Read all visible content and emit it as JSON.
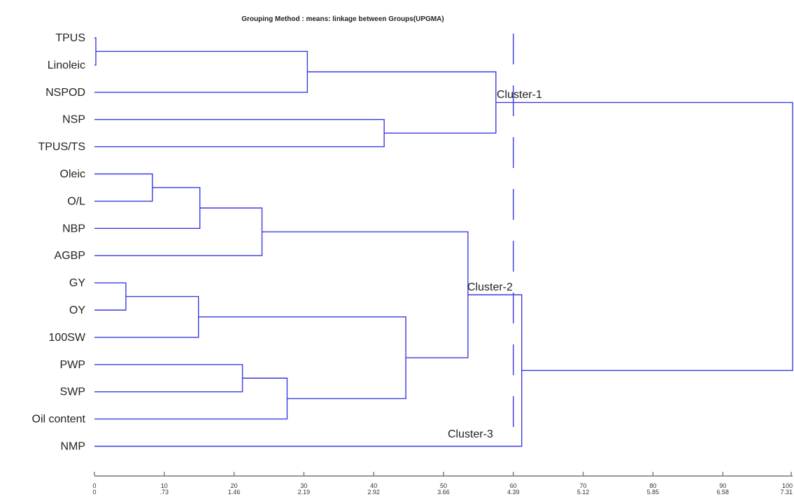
{
  "title": "Grouping Method : means: linkage between Groups(UPGMA)",
  "leaves": [
    "TPUS",
    "Linoleic",
    "NSPOD",
    "NSP",
    "TPUS/TS",
    "Oleic",
    "O/L",
    "NBP",
    "AGBP",
    "GY",
    "OY",
    "100SW",
    "PWP",
    "SWP",
    "Oil content",
    "NMP"
  ],
  "merges": [
    {
      "a": "L0",
      "b": "L1",
      "dist": 0.2
    },
    {
      "a": "M0",
      "b": "L2",
      "dist": 30.5
    },
    {
      "a": "L3",
      "b": "L4",
      "dist": 41.5
    },
    {
      "a": "M1",
      "b": "M2",
      "dist": 57.5
    },
    {
      "a": "L5",
      "b": "L6",
      "dist": 8.3
    },
    {
      "a": "M4",
      "b": "L7",
      "dist": 15.1
    },
    {
      "a": "M5",
      "b": "L8",
      "dist": 24.0
    },
    {
      "a": "L9",
      "b": "L10",
      "dist": 4.5
    },
    {
      "a": "M7",
      "b": "L11",
      "dist": 14.9
    },
    {
      "a": "L12",
      "b": "L13",
      "dist": 21.2
    },
    {
      "a": "M9",
      "b": "L14",
      "dist": 27.6
    },
    {
      "a": "M8",
      "b": "M10",
      "dist": 44.6
    },
    {
      "a": "M6",
      "b": "M11",
      "dist": 53.5
    },
    {
      "a": "M12",
      "b": "L15",
      "dist": 61.2
    },
    {
      "a": "M3",
      "b": "M13",
      "dist": 100
    }
  ],
  "axis": {
    "range": [
      0,
      100
    ],
    "ticks_top": [
      "0",
      "10",
      "20",
      "30",
      "40",
      "50",
      "60",
      "70",
      "80",
      "90",
      "100"
    ],
    "ticks_bottom": [
      "0",
      ".73",
      "1.46",
      "2.19",
      "2.92",
      "3.66",
      "4.39",
      "5.12",
      "5.85",
      "6.58",
      "7.31"
    ]
  },
  "cut_line_dist": 60.0,
  "clusters": [
    {
      "label": "Cluster-1"
    },
    {
      "label": "Cluster-2"
    },
    {
      "label": "Cluster-3"
    }
  ],
  "colors": {
    "branch": "#3a3ae0",
    "axis": "#777777",
    "text": "#222222"
  }
}
